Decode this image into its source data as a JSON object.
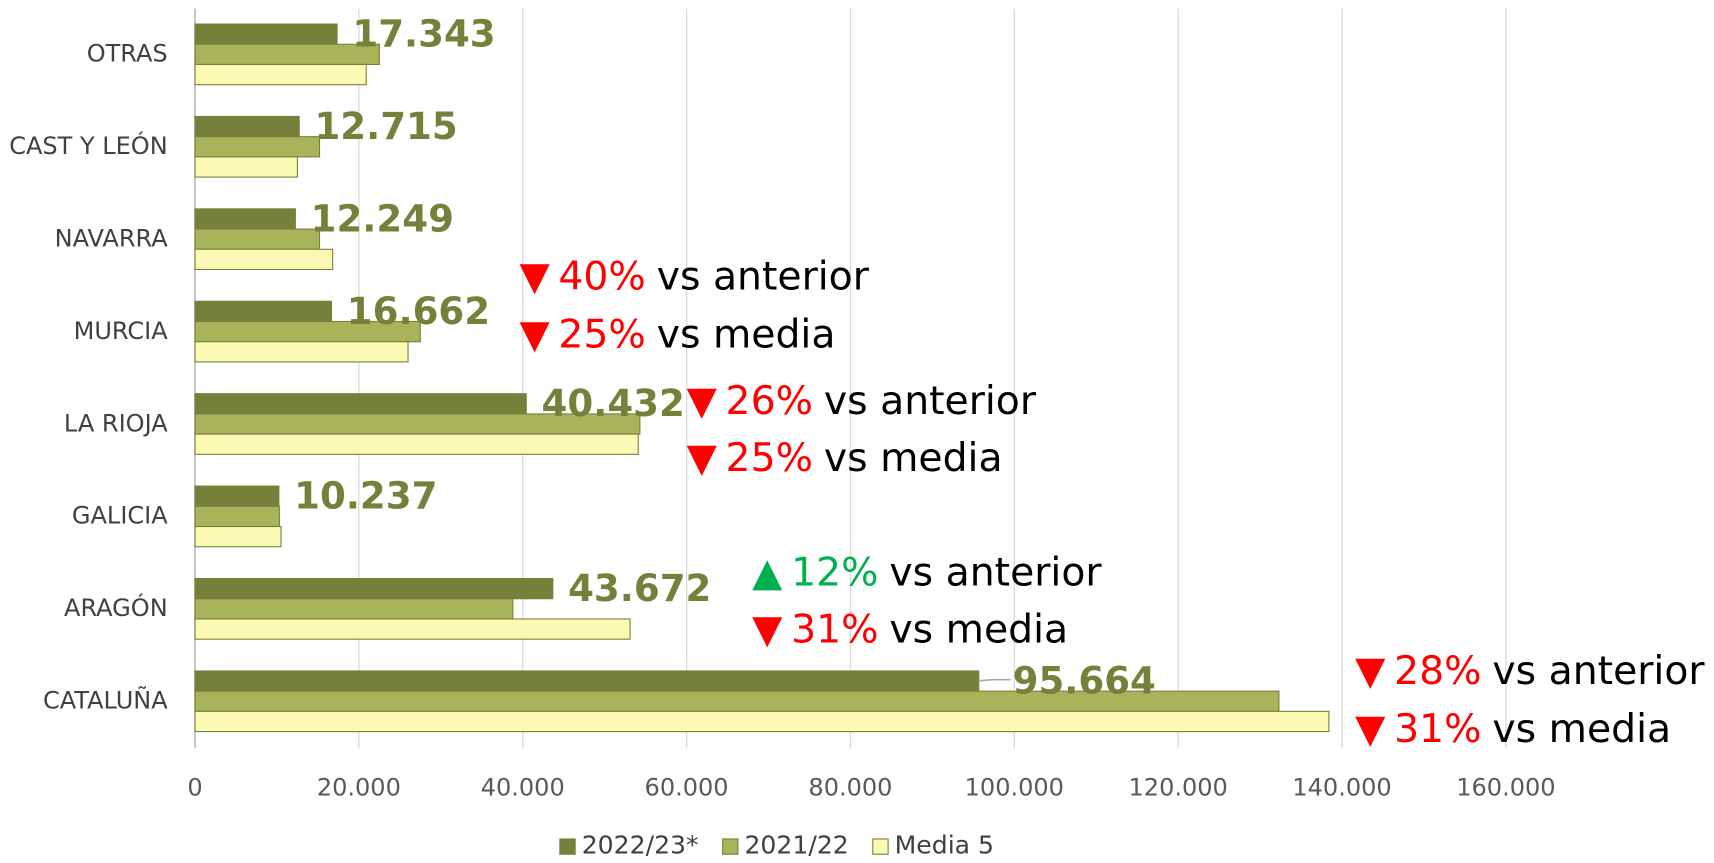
{
  "chart_data": {
    "type": "hbar",
    "categories": [
      "OTRAS",
      "CAST Y LEÓN",
      "NAVARRA",
      "MURCIA",
      "LA RIOJA",
      "GALICIA",
      "ARAGÓN",
      "CATALUÑA"
    ],
    "series": [
      {
        "name": "2022/23*",
        "color": "#77803b",
        "values": [
          17343,
          12715,
          12249,
          16662,
          40432,
          10237,
          43672,
          95664
        ],
        "value_labels": [
          "17.343",
          "12.715",
          "12.249",
          "16.662",
          "40.432",
          "10.237",
          "43.672",
          "95.664"
        ]
      },
      {
        "name": "2021/22",
        "color": "#a9b35a",
        "values": [
          22500,
          15200,
          15200,
          27500,
          54300,
          10300,
          38800,
          132300
        ]
      },
      {
        "name": "Media 5",
        "color": "#fafab4",
        "values": [
          20900,
          12500,
          16800,
          26000,
          54100,
          10500,
          53100,
          138400
        ]
      }
    ],
    "xlim": [
      0,
      160000
    ],
    "xticks": [
      0,
      {
        "value": 20000,
        "label": "20.000"
      },
      {
        "value": 40000,
        "label": "40.000"
      },
      {
        "value": 60000,
        "label": "60.000"
      },
      {
        "value": 80000,
        "label": "80.000"
      },
      {
        "value": 100000,
        "label": "100.000"
      },
      {
        "value": 120000,
        "label": "120.000"
      },
      {
        "value": 140000,
        "label": "140.000"
      },
      {
        "value": 160000,
        "label": "160.000"
      }
    ],
    "grid": true,
    "legend": "bottom",
    "annotations": [
      {
        "arrow": "▼",
        "pct": "40%",
        "text": "vs anterior",
        "color": "#ff0000"
      },
      {
        "arrow": "▼",
        "pct": "25%",
        "text": "vs media",
        "color": "#ff0000"
      },
      {
        "arrow": "▼",
        "pct": "26%",
        "text": "vs anterior",
        "color": "#ff0000"
      },
      {
        "arrow": "▼",
        "pct": "25%",
        "text": "vs media",
        "color": "#ff0000"
      },
      {
        "arrow": "▲",
        "pct": "12%",
        "text": "vs anterior",
        "color": "#00b050"
      },
      {
        "arrow": "▼",
        "pct": "31%",
        "text": "vs media",
        "color": "#ff0000"
      },
      {
        "arrow": "▼",
        "pct": "28%",
        "text": "vs anterior",
        "color": "#ff0000"
      },
      {
        "arrow": "▼",
        "pct": "31%",
        "text": "vs media",
        "color": "#ff0000"
      }
    ]
  }
}
